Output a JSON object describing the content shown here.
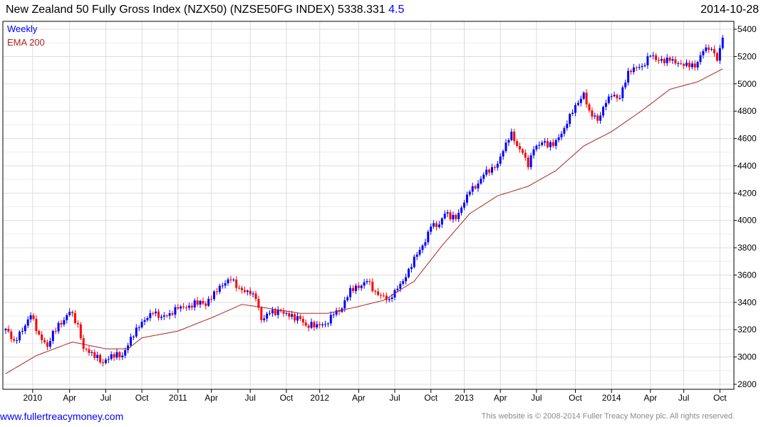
{
  "header": {
    "title": "New Zealand 50 Fully Gross Index (NZX50) (NZSE50FG INDEX) 5338.331",
    "change": "4.5",
    "date": "2014-10-28"
  },
  "footer": {
    "site": "www.fullertreacymoney.com",
    "copyright": "This website is © 2008-2014 Fuller Treacy Money plc. All rights reserved."
  },
  "colors": {
    "up": "#0000ff",
    "down": "#ff0000",
    "ema": "#b22222",
    "grid": "#dcdcdc"
  },
  "chart_data": {
    "type": "candlestick",
    "title": "New Zealand 50 Fully Gross Index (NZX50) (NZSE50FG INDEX)",
    "legend": [
      {
        "label": "Weekly",
        "color": "#0000ff"
      },
      {
        "label": "EMA 200",
        "color": "#b22222"
      }
    ],
    "legend_placement": "top-left",
    "ylim": [
      2800,
      5400
    ],
    "yticks": [
      2800,
      3000,
      3200,
      3400,
      3600,
      3800,
      4000,
      4200,
      4400,
      4600,
      4800,
      5000,
      5200,
      5400
    ],
    "weeks": 259,
    "xticks": [
      {
        "label": "2010",
        "week": 9.7
      },
      {
        "label": "Apr",
        "week": 23
      },
      {
        "label": "Jul",
        "week": 36
      },
      {
        "label": "Oct",
        "week": 49
      },
      {
        "label": "2011",
        "week": 62
      },
      {
        "label": "Apr",
        "week": 74
      },
      {
        "label": "Jul",
        "week": 88
      },
      {
        "label": "Oct",
        "week": 101
      },
      {
        "label": "2012",
        "week": 113
      },
      {
        "label": "Apr",
        "week": 127
      },
      {
        "label": "Jul",
        "week": 140
      },
      {
        "label": "Oct",
        "week": 153
      },
      {
        "label": "2013",
        "week": 165
      },
      {
        "label": "Apr",
        "week": 178
      },
      {
        "label": "Jul",
        "week": 191
      },
      {
        "label": "Oct",
        "week": 205
      },
      {
        "label": "2014",
        "week": 218
      },
      {
        "label": "Apr",
        "week": 232
      },
      {
        "label": "Jul",
        "week": 244
      },
      {
        "label": "Oct",
        "week": 257
      }
    ],
    "weekly_close_anchors": [
      [
        0,
        3206
      ],
      [
        3,
        3120
      ],
      [
        6,
        3190
      ],
      [
        9,
        3305
      ],
      [
        12,
        3165
      ],
      [
        15,
        3075
      ],
      [
        17,
        3190
      ],
      [
        21,
        3270
      ],
      [
        23,
        3330
      ],
      [
        26,
        3240
      ],
      [
        28,
        3060
      ],
      [
        31,
        3035
      ],
      [
        35,
        2955
      ],
      [
        38,
        3020
      ],
      [
        42,
        3010
      ],
      [
        44,
        3085
      ],
      [
        47,
        3215
      ],
      [
        51,
        3285
      ],
      [
        53,
        3320
      ],
      [
        56,
        3295
      ],
      [
        59,
        3320
      ],
      [
        62,
        3355
      ],
      [
        66,
        3375
      ],
      [
        70,
        3410
      ],
      [
        72,
        3375
      ],
      [
        75,
        3480
      ],
      [
        79,
        3540
      ],
      [
        81,
        3565
      ],
      [
        84,
        3505
      ],
      [
        88,
        3460
      ],
      [
        90,
        3425
      ],
      [
        92,
        3270
      ],
      [
        95,
        3320
      ],
      [
        99,
        3335
      ],
      [
        102,
        3295
      ],
      [
        106,
        3280
      ],
      [
        108,
        3230
      ],
      [
        112,
        3240
      ],
      [
        115,
        3240
      ],
      [
        118,
        3310
      ],
      [
        121,
        3355
      ],
      [
        124,
        3505
      ],
      [
        127,
        3505
      ],
      [
        130,
        3555
      ],
      [
        133,
        3480
      ],
      [
        135,
        3450
      ],
      [
        138,
        3425
      ],
      [
        140,
        3490
      ],
      [
        143,
        3555
      ],
      [
        145,
        3645
      ],
      [
        148,
        3750
      ],
      [
        151,
        3840
      ],
      [
        153,
        3955
      ],
      [
        156,
        3970
      ],
      [
        158,
        4050
      ],
      [
        162,
        4010
      ],
      [
        165,
        4130
      ],
      [
        167,
        4210
      ],
      [
        170,
        4270
      ],
      [
        172,
        4335
      ],
      [
        175,
        4390
      ],
      [
        177,
        4415
      ],
      [
        180,
        4570
      ],
      [
        182,
        4650
      ],
      [
        184,
        4545
      ],
      [
        186,
        4495
      ],
      [
        188,
        4390
      ],
      [
        190,
        4520
      ],
      [
        193,
        4570
      ],
      [
        197,
        4545
      ],
      [
        201,
        4675
      ],
      [
        203,
        4780
      ],
      [
        206,
        4860
      ],
      [
        208,
        4935
      ],
      [
        210,
        4805
      ],
      [
        213,
        4730
      ],
      [
        216,
        4860
      ],
      [
        218,
        4910
      ],
      [
        221,
        4895
      ],
      [
        224,
        5095
      ],
      [
        226,
        5120
      ],
      [
        229,
        5130
      ],
      [
        232,
        5205
      ],
      [
        235,
        5170
      ],
      [
        239,
        5170
      ],
      [
        243,
        5145
      ],
      [
        245,
        5155
      ],
      [
        248,
        5120
      ],
      [
        251,
        5240
      ],
      [
        253,
        5250
      ],
      [
        255,
        5225
      ],
      [
        256,
        5170
      ],
      [
        258,
        5338
      ]
    ],
    "ema200_anchors": [
      [
        0,
        2878
      ],
      [
        11,
        3010
      ],
      [
        24,
        3110
      ],
      [
        36,
        3060
      ],
      [
        44,
        3060
      ],
      [
        49,
        3140
      ],
      [
        62,
        3190
      ],
      [
        75,
        3295
      ],
      [
        85,
        3385
      ],
      [
        95,
        3355
      ],
      [
        106,
        3320
      ],
      [
        116,
        3320
      ],
      [
        126,
        3365
      ],
      [
        136,
        3415
      ],
      [
        147,
        3555
      ],
      [
        157,
        3815
      ],
      [
        167,
        4050
      ],
      [
        177,
        4180
      ],
      [
        188,
        4250
      ],
      [
        198,
        4365
      ],
      [
        208,
        4545
      ],
      [
        218,
        4650
      ],
      [
        229,
        4805
      ],
      [
        239,
        4960
      ],
      [
        249,
        5015
      ],
      [
        258,
        5110
      ]
    ]
  }
}
